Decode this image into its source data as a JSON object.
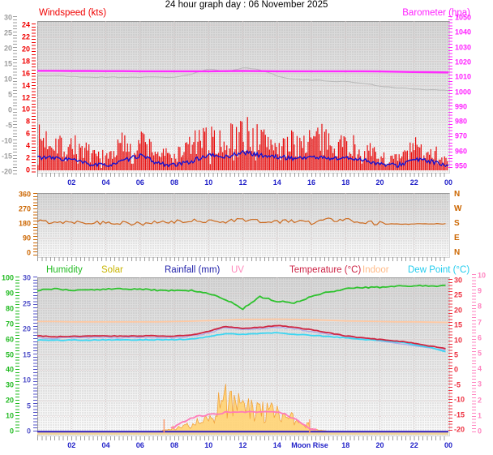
{
  "title": "24 hour graph day : 06 November 2025",
  "top_panel": {
    "left_label": "Windspeed (kts)",
    "right_label": "Barometer (hpa)",
    "axis_gray_labels": [
      "30",
      "25",
      "20",
      "15",
      "10",
      "5",
      "0",
      "-5",
      "-10",
      "-15",
      "-20"
    ],
    "axis_wind_labels": [
      "24",
      "22",
      "20",
      "18",
      "16",
      "14",
      "12",
      "10",
      "8",
      "6",
      "4",
      "2",
      "0"
    ],
    "axis_baro_labels": [
      "1050",
      "1040",
      "1030",
      "1020",
      "1010",
      "1000",
      "990",
      "980",
      "970",
      "960",
      "950"
    ],
    "hour_labels": [
      "02",
      "04",
      "06",
      "08",
      "10",
      "12",
      "14",
      "16",
      "18",
      "20",
      "22",
      "00"
    ]
  },
  "direction_panel": {
    "axis_degree_labels": [
      "360",
      "270",
      "180",
      "90",
      "0"
    ],
    "axis_compass_labels": [
      "N",
      "W",
      "S",
      "E",
      "N"
    ]
  },
  "bottom_panel": {
    "legend": [
      {
        "label": "Humidity",
        "color": "#22bb22"
      },
      {
        "label": "Solar",
        "color": "#c8b400"
      },
      {
        "label": "Rainfall (mm)",
        "color": "#2222aa"
      },
      {
        "label": "UV",
        "color": "#ff88bb"
      },
      {
        "label": "Temperature (°C)",
        "color": "#cc2244"
      },
      {
        "label": "Indoor",
        "color": "#ffbb88"
      },
      {
        "label": "Dew Point (°C)",
        "color": "#22ccee"
      }
    ],
    "axis_humidity_labels": [
      "100",
      "90",
      "80",
      "70",
      "60",
      "50",
      "40",
      "30",
      "20",
      "10",
      "0"
    ],
    "axis_rain_labels": [
      "30",
      "25",
      "20",
      "15",
      "10",
      "5",
      "0"
    ],
    "axis_temp_labels": [
      "30",
      "25",
      "20",
      "15",
      "10",
      "5",
      "0",
      "-5",
      "-10",
      "-15",
      "-20"
    ],
    "axis_uv_labels": [
      "10",
      "9",
      "8",
      "7",
      "6",
      "5",
      "4",
      "3",
      "2",
      "1",
      "0"
    ],
    "hour_labels": [
      "02",
      "04",
      "06",
      "08",
      "10",
      "12",
      "14",
      "Moon Rise",
      "18",
      "20",
      "22",
      "00"
    ],
    "moon_rise_label": "Moon Rise"
  },
  "chart_data": [
    {
      "type": "line",
      "title": "Windspeed and Barometer",
      "x_hours": [
        0,
        1,
        2,
        3,
        4,
        5,
        6,
        7,
        8,
        9,
        10,
        11,
        12,
        13,
        14,
        15,
        16,
        17,
        18,
        19,
        20,
        21,
        22,
        23,
        24
      ],
      "axes": {
        "windspeed_kts": {
          "min": 0,
          "max": 24,
          "color": "#f00000"
        },
        "outer_left": {
          "min": -20,
          "max": 30,
          "color": "#9c9c9c"
        },
        "barometer_hpa": {
          "min": 950,
          "max": 1050,
          "color": "#ff20ff"
        }
      },
      "series": [
        {
          "name": "wind-gust",
          "type": "bar",
          "axis": "windspeed_kts",
          "color": "#e81010",
          "values": [
            7,
            7,
            6,
            4,
            3,
            6,
            7,
            4,
            3,
            6,
            7,
            7,
            9,
            7,
            6,
            6,
            7,
            7,
            6,
            5,
            3,
            2.5,
            5,
            5,
            2
          ]
        },
        {
          "name": "wind-average",
          "type": "line",
          "axis": "windspeed_kts",
          "color": "#1414d2",
          "values": [
            2.2,
            2,
            1.8,
            1,
            0.8,
            1.5,
            2.5,
            1.2,
            0.8,
            1.5,
            2.5,
            2.2,
            3,
            2.5,
            2.2,
            2,
            2.2,
            2,
            2,
            1.8,
            1,
            0.8,
            1.8,
            1.5,
            0.5
          ]
        },
        {
          "name": "barometer",
          "type": "line",
          "axis": "barometer_hpa",
          "color": "#ff2bff",
          "values": [
            1014.3,
            1014.3,
            1014.2,
            1014.2,
            1014.1,
            1014.1,
            1014,
            1014,
            1014,
            1014,
            1014,
            1014.1,
            1014.2,
            1014.1,
            1014,
            1014,
            1014,
            1014,
            1014,
            1014,
            1013.9,
            1013.7,
            1013.5,
            1013.4,
            1013.2
          ]
        },
        {
          "name": "barometer-reference",
          "type": "line",
          "axis": "barometer_hpa",
          "color": "#b8b8b8",
          "values": [
            1011,
            1011,
            1010.5,
            1010,
            1010,
            1010,
            1010,
            1010,
            1010,
            1012,
            1015.5,
            1013.5,
            1016.5,
            1015,
            1011,
            1008.5,
            1008,
            1007.5,
            1007,
            1006,
            1004,
            1003,
            1002,
            1001.5,
            1001
          ]
        }
      ]
    },
    {
      "type": "line",
      "title": "Wind Direction",
      "x_hours": [
        0,
        1,
        2,
        3,
        4,
        5,
        6,
        7,
        8,
        9,
        10,
        11,
        12,
        13,
        14,
        15,
        16,
        17,
        18,
        19,
        20,
        21,
        22,
        23,
        24
      ],
      "axes": {
        "degrees": {
          "min": 0,
          "max": 360,
          "color": "#cc6600",
          "compass": [
            "N",
            "W",
            "S",
            "E",
            "N"
          ]
        }
      },
      "series": [
        {
          "name": "wind-direction",
          "type": "line",
          "axis": "degrees",
          "color": "#cc6a1e",
          "values": [
            195,
            192,
            195,
            190,
            186,
            190,
            178,
            186,
            192,
            196,
            200,
            196,
            208,
            196,
            190,
            200,
            186,
            208,
            204,
            196,
            182,
            178,
            179,
            180,
            180
          ]
        }
      ]
    },
    {
      "type": "line",
      "title": "Humidity, Solar, Rainfall, UV, Temperature, Indoor, Dew Point",
      "x_hours": [
        0,
        1,
        2,
        3,
        4,
        5,
        6,
        7,
        8,
        9,
        10,
        11,
        12,
        13,
        14,
        15,
        16,
        17,
        18,
        19,
        20,
        21,
        22,
        23,
        24
      ],
      "axes": {
        "humidity_pct": {
          "min": 0,
          "max": 100,
          "color": "#22bb22"
        },
        "rainfall_mm": {
          "min": 0,
          "max": 30,
          "color": "#5050c8"
        },
        "temperature_c": {
          "min": -20,
          "max": 30,
          "color": "#ee3040"
        },
        "uv_index": {
          "min": 0,
          "max": 10,
          "color": "#ff85c0"
        },
        "solar_note": "no visible scale; values are relative 0-100 of panel height"
      },
      "series": [
        {
          "name": "humidity",
          "type": "line",
          "axis": "humidity_pct",
          "color": "#2ec22e",
          "values": [
            92,
            93,
            92,
            92,
            93,
            93,
            93,
            92,
            92,
            92,
            90,
            86,
            80,
            88,
            85,
            84,
            88,
            91,
            93,
            94,
            94,
            95,
            95,
            95,
            95
          ]
        },
        {
          "name": "solar",
          "type": "area",
          "axis": "humidity_pct",
          "color": "#ffd373",
          "values": [
            0,
            0,
            0,
            0,
            0,
            0,
            0,
            0,
            2,
            6,
            10,
            24,
            22,
            16,
            14,
            9,
            2,
            0,
            0,
            0,
            0,
            0,
            0,
            0,
            0
          ]
        },
        {
          "name": "rainfall",
          "type": "line",
          "axis": "rainfall_mm",
          "color": "#3a28c0",
          "values": [
            0,
            0,
            0,
            0,
            0,
            0,
            0,
            0,
            0,
            0,
            0,
            0,
            0,
            0,
            0,
            0,
            0,
            0,
            0,
            0,
            0,
            0,
            0,
            0,
            0
          ]
        },
        {
          "name": "uv",
          "type": "line",
          "axis": "uv_index",
          "color": "#ff7ab8",
          "values": [
            0,
            0,
            0,
            0,
            0,
            0,
            0,
            0,
            0.3,
            0.9,
            1.1,
            1.2,
            1.25,
            1.2,
            1.3,
            0.8,
            0.1,
            0,
            0,
            0,
            0,
            0,
            0,
            0,
            0
          ]
        },
        {
          "name": "temperature",
          "type": "line",
          "axis": "temperature_c",
          "color": "#d02540",
          "values": [
            11.5,
            11.2,
            11.4,
            11.4,
            11.5,
            11.4,
            11.5,
            11.5,
            11.4,
            11.8,
            13,
            14.7,
            14,
            14.3,
            15,
            14.3,
            13.5,
            12.5,
            11.5,
            10.8,
            10.3,
            9.8,
            9,
            8,
            7
          ]
        },
        {
          "name": "wind-chill",
          "type": "line",
          "axis": "temperature_c",
          "color": "#a0a0ec",
          "values": [
            11,
            10.7,
            10.9,
            10.9,
            11,
            10.9,
            11,
            11,
            10.9,
            11.3,
            12.5,
            14.2,
            13.5,
            13.8,
            14.5,
            13.8,
            13,
            12,
            11,
            10.3,
            9.8,
            9.3,
            8.5,
            7.5,
            6.5
          ]
        },
        {
          "name": "indoor",
          "type": "line",
          "axis": "temperature_c",
          "color": "#ffc9a3",
          "values": [
            16.3,
            16.3,
            16.2,
            16.2,
            16.2,
            16.2,
            16.2,
            16.2,
            16.3,
            16.4,
            16.6,
            16.8,
            17,
            17,
            17.1,
            17,
            16.9,
            16.7,
            16.5,
            16.4,
            16.3,
            16.2,
            16.2,
            16.1,
            16
          ]
        },
        {
          "name": "dew-point",
          "type": "line",
          "axis": "temperature_c",
          "color": "#3cd6f2",
          "values": [
            10.1,
            10,
            10.1,
            10.1,
            10.2,
            10.1,
            10.2,
            10.2,
            10.2,
            10.4,
            11.2,
            12.3,
            12,
            12.3,
            12.5,
            12,
            11.7,
            11.3,
            10.8,
            10.3,
            10,
            9.5,
            8.6,
            7.5,
            5.8
          ]
        }
      ],
      "markers": {
        "sunrise_hour": 7.4,
        "sunset_hour": 15.9,
        "moon_rise_label_hour": 16
      }
    }
  ]
}
